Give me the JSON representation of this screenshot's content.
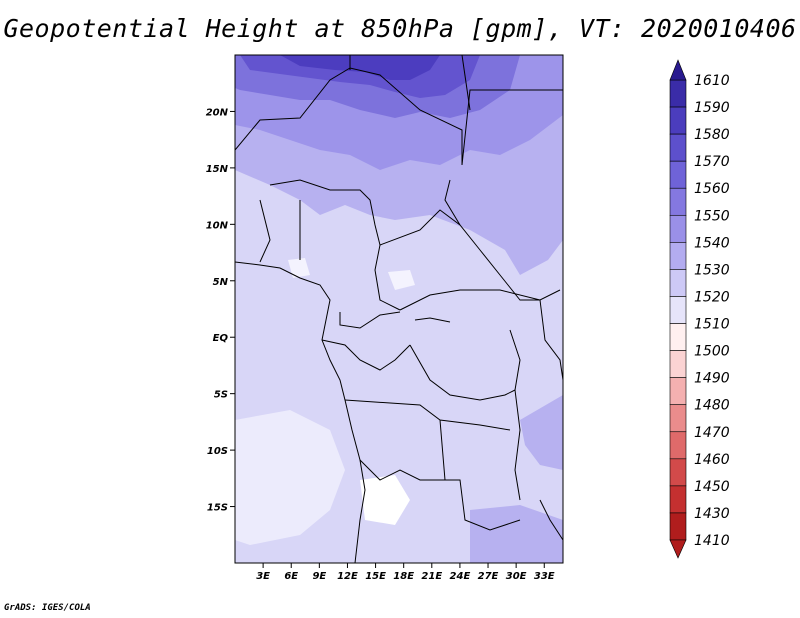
{
  "title": "Geopotential Height at 850hPa [gpm], VT: 2020010406",
  "credit": "GrADS: IGES/COLA",
  "map": {
    "lon_range": [
      0,
      35
    ],
    "lat_range": [
      -20,
      25
    ],
    "x_ticks": [
      "3E",
      "6E",
      "9E",
      "12E",
      "15E",
      "18E",
      "21E",
      "24E",
      "27E",
      "30E",
      "33E"
    ],
    "y_ticks": [
      "20N",
      "15N",
      "10N",
      "5N",
      "EQ",
      "5S",
      "10S",
      "15S"
    ],
    "variable": "geopotential height",
    "level": "850hPa",
    "units": "gpm",
    "valid_time": "2020010406"
  },
  "colorbar": {
    "labels": [
      "1610",
      "1590",
      "1580",
      "1570",
      "1560",
      "1550",
      "1540",
      "1530",
      "1520",
      "1510",
      "1500",
      "1490",
      "1480",
      "1470",
      "1460",
      "1450",
      "1430",
      "1410"
    ],
    "colors": [
      "#291a8f",
      "#3a2ca8",
      "#4b3dbd",
      "#5d50cc",
      "#6f63d8",
      "#8478e0",
      "#9a90e8",
      "#b3acf0",
      "#cdc9f6",
      "#e6e4fa",
      "#fff0f0",
      "#fbd3d3",
      "#f4b0b0",
      "#ea8c8c",
      "#df6a6a",
      "#d24a4a",
      "#c43030",
      "#b01d1d"
    ]
  }
}
